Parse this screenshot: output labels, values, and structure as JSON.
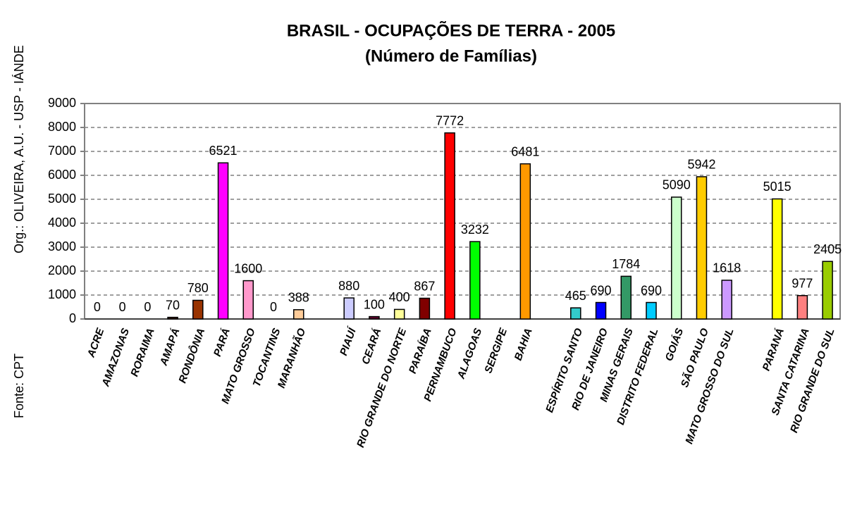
{
  "chart_data": {
    "type": "bar",
    "title": "BRASIL - OCUPAÇÕES DE TERRA - 2005",
    "subtitle": "(Número de Famílias)",
    "author": "Org.: OLIVEIRA, A.U. - USP - IÁNDE",
    "source": "Fonte: CPT",
    "categories": [
      "ACRE",
      "AMAZONAS",
      "RORAIMA",
      "AMAPÁ",
      "RONDÔNIA",
      "PARÁ",
      "MATO GROSSO",
      "TOCANTINS",
      "MARANHÃO",
      null,
      "PIAUÍ",
      "CEARÁ",
      "RIO GRANDE DO NORTE",
      "PARAÍBA",
      "PERNAMBUCO",
      "ALAGOAS",
      "SERGIPE",
      "BAHIA",
      null,
      "ESPÍRITO SANTO",
      "RIO DE JANEIRO",
      "MINAS GERAIS",
      "DISTRITO FEDERAL",
      "GOIÁS",
      "SÃO PAULO",
      "MATO GROSSO DO SUL",
      null,
      "PARANÁ",
      "SANTA CATARINA",
      "RIO GRANDE DO SUL"
    ],
    "values": [
      0,
      0,
      0,
      70,
      780,
      6521,
      1600,
      0,
      388,
      null,
      880,
      100,
      400,
      867,
      7772,
      3232,
      null,
      6481,
      null,
      465,
      690,
      1784,
      690,
      5090,
      5942,
      1618,
      null,
      5015,
      977,
      2405
    ],
    "colors": [
      "#800000",
      "#808080",
      "#008080",
      "#402000",
      "#993300",
      "#ff00ff",
      "#ff99cc",
      "#c0c0c0",
      "#ffcc99",
      null,
      "#ccccff",
      "#660033",
      "#ffff99",
      "#800000",
      "#ff0000",
      "#00ff00",
      "#ff6600",
      "#ff9900",
      null,
      "#33cccc",
      "#0000ff",
      "#339966",
      "#00ccff",
      "#ccffcc",
      "#ffcc00",
      "#cc99ff",
      null,
      "#ffff00",
      "#ff8080",
      "#99cc00"
    ],
    "ylim": [
      0,
      9000
    ],
    "yticks": [
      0,
      1000,
      2000,
      3000,
      4000,
      5000,
      6000,
      7000,
      8000,
      9000
    ],
    "grid": true
  }
}
